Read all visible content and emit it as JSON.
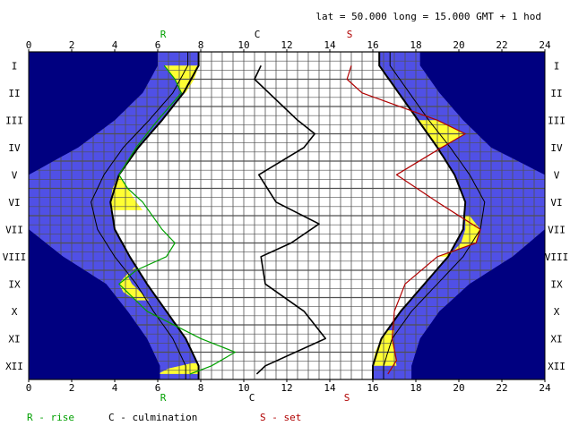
{
  "header": {
    "location": "lat = 50.000   long = 15.000   GMT + 1 hod"
  },
  "legend": {
    "rise": "R - rise",
    "culmination": "C - culmination",
    "set": "S - set"
  },
  "markers": {
    "rise": "R",
    "culmination": "C",
    "set": "S"
  },
  "colors": {
    "night": "#000080",
    "twilight": "#5050e6",
    "daylight": "#ffffff",
    "moon_up": "#ffff33",
    "rise_curve": "#00a000",
    "set_curve": "#b00000",
    "culmination_curve": "#000000",
    "grid": "#505050"
  },
  "chart_data": {
    "type": "line",
    "title": "",
    "x_axis": {
      "min": 0,
      "max": 24,
      "ticks": [
        0,
        2,
        4,
        6,
        8,
        10,
        12,
        14,
        16,
        18,
        20,
        22,
        24
      ]
    },
    "y_axis": {
      "months": [
        "I",
        "II",
        "III",
        "IV",
        "V",
        "VI",
        "VII",
        "VIII",
        "IX",
        "X",
        "XI",
        "XII"
      ],
      "range": [
        0.5,
        12.5
      ],
      "inverted": true
    },
    "series": [
      {
        "name": "R",
        "role": "moonrise",
        "points": [
          [
            1.0,
            6.3
          ],
          [
            1.5,
            6.8
          ],
          [
            2.0,
            7.1
          ],
          [
            3.0,
            6.0
          ],
          [
            4.0,
            5.0
          ],
          [
            5.0,
            4.2
          ],
          [
            5.5,
            4.6
          ],
          [
            6.0,
            5.3
          ],
          [
            7.0,
            6.2
          ],
          [
            7.5,
            6.8
          ],
          [
            8.0,
            6.4
          ],
          [
            8.5,
            5.0
          ],
          [
            9.0,
            4.2
          ],
          [
            10.0,
            5.5
          ],
          [
            11.0,
            8.0
          ],
          [
            11.5,
            9.6
          ],
          [
            12.0,
            8.5
          ],
          [
            12.3,
            7.5
          ]
        ]
      },
      {
        "name": "C",
        "role": "moon culmination",
        "points": [
          [
            1.0,
            10.8
          ],
          [
            1.5,
            10.5
          ],
          [
            3.0,
            12.5
          ],
          [
            3.5,
            13.3
          ],
          [
            4.0,
            12.8
          ],
          [
            5.0,
            10.7
          ],
          [
            6.0,
            11.5
          ],
          [
            6.8,
            13.5
          ],
          [
            7.5,
            12.2
          ],
          [
            8.0,
            10.8
          ],
          [
            9.0,
            11.0
          ],
          [
            10.0,
            12.8
          ],
          [
            11.0,
            13.8
          ],
          [
            12.0,
            11.0
          ],
          [
            12.3,
            10.6
          ]
        ]
      },
      {
        "name": "S",
        "role": "moonset",
        "points": [
          [
            1.0,
            15.0
          ],
          [
            1.5,
            14.8
          ],
          [
            2.0,
            15.5
          ],
          [
            3.0,
            19.0
          ],
          [
            3.5,
            20.3
          ],
          [
            4.0,
            19.2
          ],
          [
            5.0,
            17.1
          ],
          [
            6.0,
            19.0
          ],
          [
            7.0,
            21.0
          ],
          [
            7.5,
            20.8
          ],
          [
            8.0,
            19.0
          ],
          [
            9.0,
            17.5
          ],
          [
            10.0,
            17.0
          ],
          [
            11.0,
            16.9
          ],
          [
            11.8,
            17.1
          ],
          [
            12.3,
            16.7
          ]
        ]
      }
    ],
    "sun": {
      "months": [
        1,
        2,
        3,
        4,
        5,
        6,
        7,
        8,
        9,
        10,
        11,
        12
      ],
      "sunrise": [
        7.9,
        7.2,
        6.2,
        5.1,
        4.2,
        3.8,
        4.0,
        4.7,
        5.5,
        6.4,
        7.3,
        7.9
      ],
      "sunset": [
        16.3,
        17.2,
        18.1,
        19.0,
        19.8,
        20.3,
        20.2,
        19.5,
        18.4,
        17.3,
        16.4,
        16.0
      ],
      "civil_dawn": [
        7.4,
        6.7,
        5.6,
        4.4,
        3.5,
        2.9,
        3.2,
        4.0,
        5.0,
        5.8,
        6.7,
        7.3
      ],
      "civil_dusk": [
        16.8,
        17.7,
        18.6,
        19.6,
        20.5,
        21.2,
        21.0,
        20.2,
        19.0,
        17.8,
        16.9,
        16.5
      ],
      "astro_dawn": [
        6.0,
        5.3,
        4.0,
        2.3,
        0.0,
        0.0,
        0.0,
        1.6,
        3.6,
        4.6,
        5.5,
        6.1
      ],
      "astro_dusk": [
        18.2,
        19.1,
        20.2,
        21.5,
        24.0,
        24.0,
        24.0,
        22.5,
        20.5,
        19.1,
        18.2,
        17.8
      ]
    },
    "moon_daylight_visibility": [
      {
        "side": "morning",
        "rows": [
          [
            1.0,
            6.3,
            7.9
          ],
          [
            1.5,
            6.8,
            7.7
          ],
          [
            2.0,
            7.1,
            7.3
          ]
        ]
      },
      {
        "side": "morning",
        "rows": [
          [
            5.0,
            4.2,
            4.2
          ],
          [
            5.5,
            3.9,
            4.6
          ],
          [
            6.0,
            3.8,
            5.0
          ],
          [
            6.3,
            3.8,
            5.3
          ]
        ]
      },
      {
        "side": "morning",
        "rows": [
          [
            8.4,
            4.9,
            5.0
          ],
          [
            8.7,
            4.6,
            4.5
          ],
          [
            9.0,
            4.8,
            4.2
          ],
          [
            9.3,
            5.2,
            4.4
          ],
          [
            9.6,
            5.6,
            5.0
          ]
        ]
      },
      {
        "side": "morning",
        "rows": [
          [
            11.9,
            7.8,
            7.6
          ],
          [
            12.1,
            7.9,
            6.5
          ],
          [
            12.3,
            7.9,
            6.0
          ]
        ]
      },
      {
        "side": "evening",
        "rows": [
          [
            3.0,
            18.1,
            19.0
          ],
          [
            3.5,
            18.5,
            20.3
          ],
          [
            4.0,
            19.0,
            19.2
          ]
        ]
      },
      {
        "side": "evening",
        "rows": [
          [
            6.5,
            20.3,
            20.5
          ],
          [
            7.0,
            20.3,
            21.0
          ],
          [
            7.5,
            20.1,
            20.8
          ],
          [
            8.0,
            19.5,
            19.0
          ]
        ]
      },
      {
        "side": "evening",
        "rows": [
          [
            10.7,
            16.7,
            17.0
          ],
          [
            11.0,
            16.4,
            16.9
          ],
          [
            11.5,
            16.1,
            17.0
          ],
          [
            12.0,
            16.0,
            17.1
          ]
        ]
      }
    ]
  }
}
